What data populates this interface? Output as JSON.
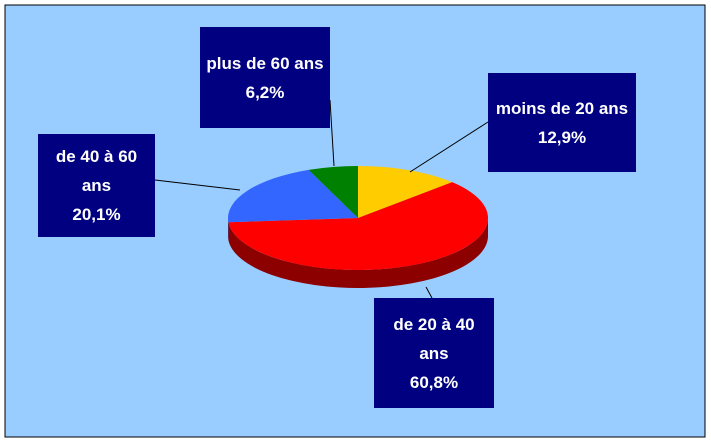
{
  "chart_data": {
    "type": "pie",
    "categories": [
      "moins de 20 ans",
      "de 20 à 40 ans",
      "de 40 à 60 ans",
      "plus de 60 ans"
    ],
    "values": [
      12.9,
      60.8,
      20.1,
      6.2
    ],
    "value_labels": [
      "12,9%",
      "60,8%",
      "20,1%",
      "6,2%"
    ],
    "colors": [
      "#ffcc00",
      "#ff0000",
      "#3366ff",
      "#008000"
    ]
  }
}
